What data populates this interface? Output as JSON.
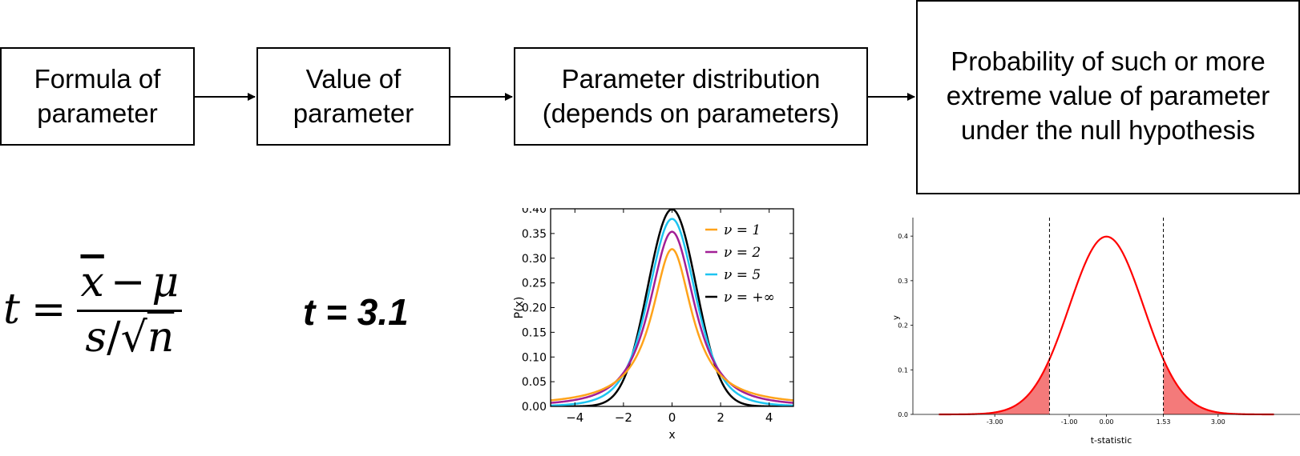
{
  "boxes": [
    {
      "text": "Formula of\nparameter"
    },
    {
      "text": "Value of\nparameter"
    },
    {
      "text": "Parameter distribution\n(depends on parameters)"
    },
    {
      "text": "Probability of such or more\nextreme value of parameter\nunder the null hypothesis"
    }
  ],
  "formula": {
    "lhs": "t",
    "eq": "=",
    "num_xbar": "x",
    "num_op": "−",
    "num_mu": "μ",
    "den_s": "s",
    "den_slash": "/",
    "den_sqrt": "√",
    "den_n": "n"
  },
  "value": {
    "text": "t = 3.1"
  },
  "chart_data": [
    {
      "type": "line",
      "xlabel": "x",
      "ylabel": "P(x)",
      "xlim": [
        -5,
        5
      ],
      "ylim": [
        0,
        0.4
      ],
      "xticks": [
        -4,
        -2,
        0,
        2,
        4
      ],
      "xtick_labels": [
        "−4",
        "−2",
        "0",
        "2",
        "4"
      ],
      "yticks": [
        0,
        0.05,
        0.1,
        0.15,
        0.2,
        0.25,
        0.3,
        0.35,
        0.4
      ],
      "ytick_labels": [
        "0.00",
        "0.05",
        "0.10",
        "0.15",
        "0.20",
        "0.25",
        "0.30",
        "0.35",
        "0.40"
      ],
      "legend_position": "top-right",
      "series": [
        {
          "name": "ν = 1",
          "df": 1,
          "peak": 0.318,
          "color": "#ffa31a"
        },
        {
          "name": "ν = 2",
          "df": 2,
          "peak": 0.354,
          "color": "#a21f96"
        },
        {
          "name": "ν = 5",
          "df": 5,
          "peak": 0.38,
          "color": "#1ec4f0"
        },
        {
          "name": "ν = +∞",
          "df": "inf",
          "peak": 0.399,
          "color": "#000000"
        }
      ]
    },
    {
      "type": "area",
      "xlabel": "t-statistic",
      "ylabel": "y",
      "xlim": [
        -5.2,
        5.2
      ],
      "ylim": [
        0,
        0.42
      ],
      "xticks": [
        -3,
        -1,
        0,
        1.53,
        3
      ],
      "xtick_labels": [
        "-3.00",
        "-1.00",
        "0.00",
        "1.53",
        "3.00"
      ],
      "yticks": [
        0,
        0.1,
        0.2,
        0.3,
        0.4
      ],
      "ytick_labels": [
        "0.0",
        "0.1",
        "0.2",
        "0.3",
        "0.4"
      ],
      "curve": {
        "distribution": "standard normal",
        "peak": 0.399,
        "x_range": [
          -4.5,
          4.5
        ],
        "color": "#ff0000"
      },
      "critical_values": [
        -1.53,
        1.53
      ],
      "shaded_tails": {
        "left_upto": -1.53,
        "right_from": 1.53,
        "color": "#f47a7a"
      }
    }
  ]
}
